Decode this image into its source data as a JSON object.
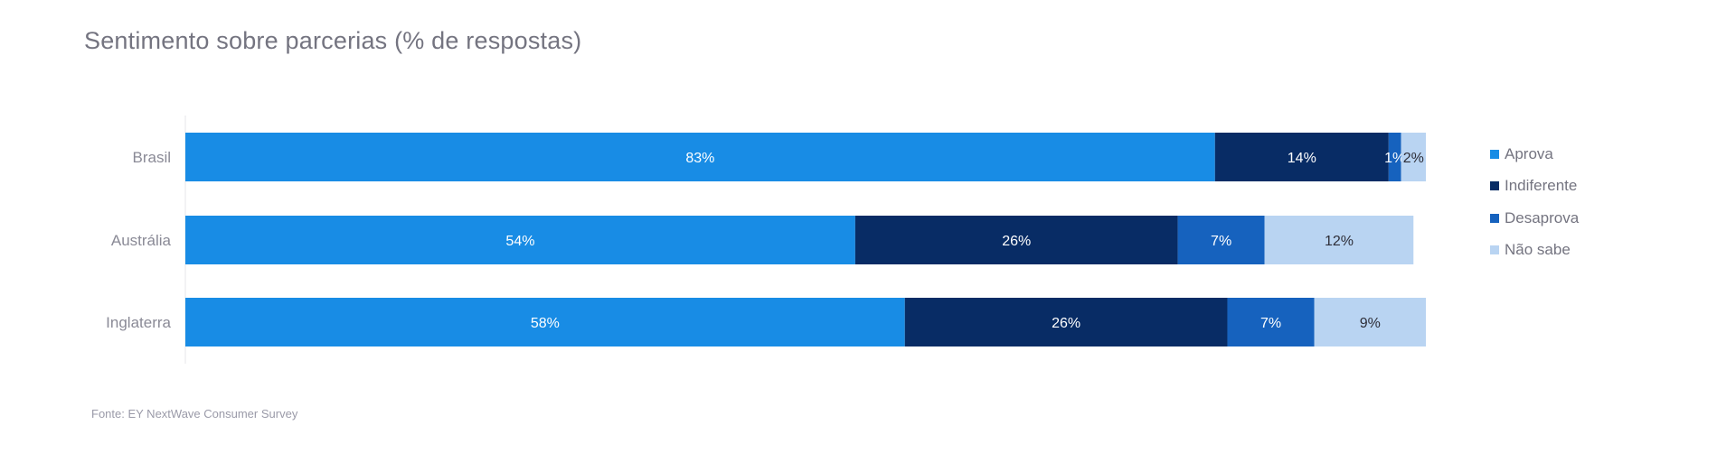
{
  "chart_data": {
    "type": "bar",
    "orientation": "horizontal",
    "stacked": true,
    "title": "Sentimento sobre parcerias (% de respostas)",
    "categories": [
      "Brasil",
      "Austrália",
      "Inglaterra"
    ],
    "series": [
      {
        "name": "Aprova",
        "values": [
          83,
          54,
          58
        ],
        "color": "#188CE5",
        "label_color": "#ffffff"
      },
      {
        "name": "Indiferente",
        "values": [
          14,
          26,
          26
        ],
        "color": "#082C65",
        "label_color": "#ffffff"
      },
      {
        "name": "Desaprova",
        "values": [
          1,
          7,
          7
        ],
        "color": "#1662BE",
        "label_color": "#ffffff"
      },
      {
        "name": "Não sabe",
        "values": [
          2,
          12,
          9
        ],
        "color": "#B9D4F2",
        "label_color": "#2E2E38"
      }
    ],
    "value_suffix": "%",
    "xlim": [
      0,
      100
    ],
    "grid": false,
    "legend_position": "right",
    "source": "Fonte: EY NextWave Consumer Survey"
  }
}
